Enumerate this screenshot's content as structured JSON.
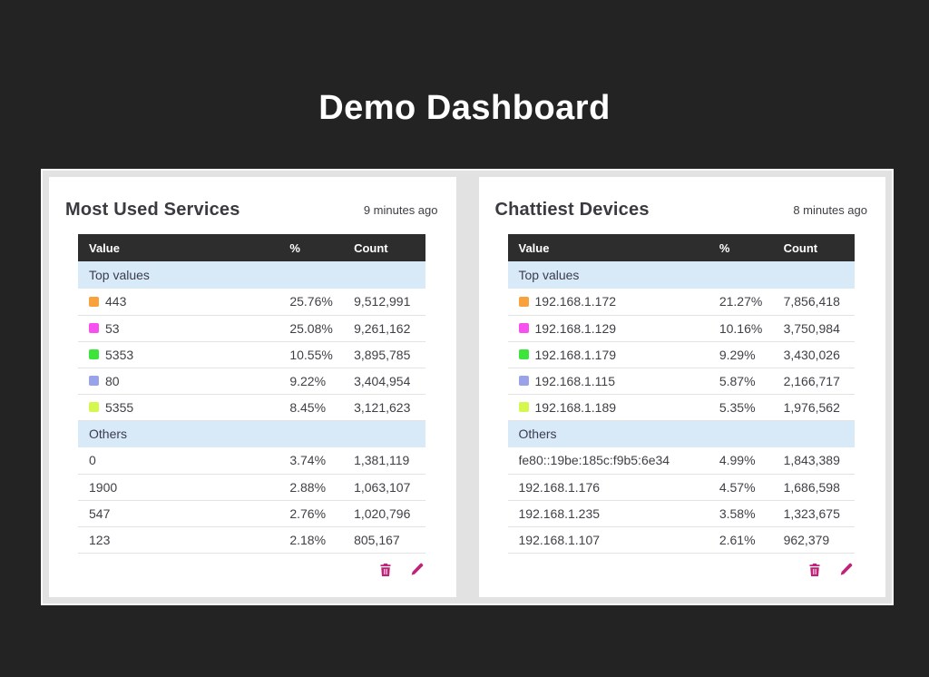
{
  "page": {
    "title": "Demo Dashboard",
    "background_color": "#232323",
    "accent_color": "#c12179",
    "section_band_color": "#d8eaf8",
    "table_header_color": "#2d2d2d"
  },
  "panels": [
    {
      "title": "Most Used Services",
      "timestamp": "9 minutes ago",
      "columns": [
        "Value",
        "%",
        "Count"
      ],
      "sections": [
        {
          "label": "Top values",
          "rows": [
            {
              "value": "443",
              "swatch": "#f9a23c",
              "percent": "25.76%",
              "count": "9,512,991"
            },
            {
              "value": "53",
              "swatch": "#f84fef",
              "percent": "25.08%",
              "count": "9,261,162"
            },
            {
              "value": "5353",
              "swatch": "#3ce43c",
              "percent": "10.55%",
              "count": "3,895,785"
            },
            {
              "value": "80",
              "swatch": "#99a3ea",
              "percent": "9.22%",
              "count": "3,404,954"
            },
            {
              "value": "5355",
              "swatch": "#d5f74e",
              "percent": "8.45%",
              "count": "3,121,623"
            }
          ]
        },
        {
          "label": "Others",
          "rows": [
            {
              "value": "0",
              "percent": "3.74%",
              "count": "1,381,119"
            },
            {
              "value": "1900",
              "percent": "2.88%",
              "count": "1,063,107"
            },
            {
              "value": "547",
              "percent": "2.76%",
              "count": "1,020,796"
            },
            {
              "value": "123",
              "percent": "2.18%",
              "count": "805,167"
            }
          ]
        }
      ],
      "actions": {
        "delete_icon": "trash-icon",
        "edit_icon": "pencil-icon"
      }
    },
    {
      "title": "Chattiest Devices",
      "timestamp": "8 minutes ago",
      "columns": [
        "Value",
        "%",
        "Count"
      ],
      "sections": [
        {
          "label": "Top values",
          "rows": [
            {
              "value": "192.168.1.172",
              "swatch": "#f9a23c",
              "percent": "21.27%",
              "count": "7,856,418"
            },
            {
              "value": "192.168.1.129",
              "swatch": "#f84fef",
              "percent": "10.16%",
              "count": "3,750,984"
            },
            {
              "value": "192.168.1.179",
              "swatch": "#3ce43c",
              "percent": "9.29%",
              "count": "3,430,026"
            },
            {
              "value": "192.168.1.115",
              "swatch": "#99a3ea",
              "percent": "5.87%",
              "count": "2,166,717"
            },
            {
              "value": "192.168.1.189",
              "swatch": "#d5f74e",
              "percent": "5.35%",
              "count": "1,976,562"
            }
          ]
        },
        {
          "label": "Others",
          "rows": [
            {
              "value": "fe80::19be:185c:f9b5:6e34",
              "percent": "4.99%",
              "count": "1,843,389"
            },
            {
              "value": "192.168.1.176",
              "percent": "4.57%",
              "count": "1,686,598"
            },
            {
              "value": "192.168.1.235",
              "percent": "3.58%",
              "count": "1,323,675"
            },
            {
              "value": "192.168.1.107",
              "percent": "2.61%",
              "count": "962,379"
            }
          ]
        }
      ],
      "actions": {
        "delete_icon": "trash-icon",
        "edit_icon": "pencil-icon"
      }
    }
  ]
}
